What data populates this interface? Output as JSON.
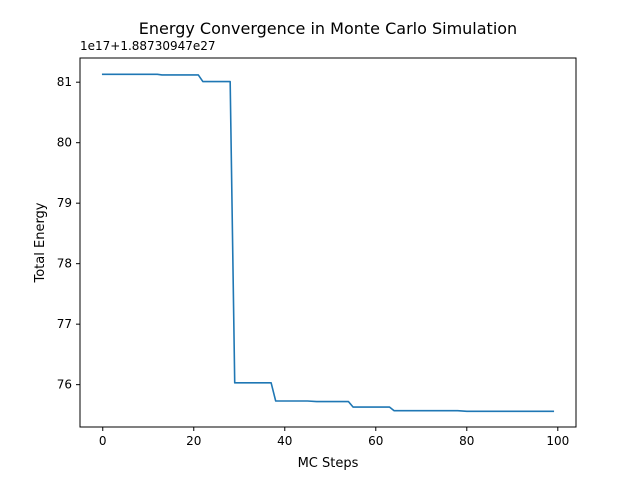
{
  "chart_data": {
    "type": "line",
    "title": "Energy Convergence in Monte Carlo Simulation",
    "xlabel": "MC Steps",
    "ylabel": "Total Energy",
    "y_offset_label": "1e17+1.88730947e27",
    "xlim": [
      -5,
      104
    ],
    "ylim": [
      75.3,
      81.4
    ],
    "xticks": [
      0,
      20,
      40,
      60,
      80,
      100
    ],
    "yticks": [
      76,
      77,
      78,
      79,
      80,
      81
    ],
    "grid": false,
    "line_color": "#1f77b4",
    "series": [
      {
        "points": [
          [
            0,
            81.13
          ],
          [
            12,
            81.13
          ],
          [
            13,
            81.12
          ],
          [
            21,
            81.12
          ],
          [
            22,
            81.01
          ],
          [
            28,
            81.01
          ],
          [
            29,
            76.03
          ],
          [
            37,
            76.03
          ],
          [
            38,
            75.73
          ],
          [
            45,
            75.73
          ],
          [
            47,
            75.72
          ],
          [
            54,
            75.72
          ],
          [
            55,
            75.63
          ],
          [
            63,
            75.63
          ],
          [
            64,
            75.57
          ],
          [
            78,
            75.57
          ],
          [
            80,
            75.56
          ],
          [
            99,
            75.56
          ]
        ]
      }
    ]
  }
}
